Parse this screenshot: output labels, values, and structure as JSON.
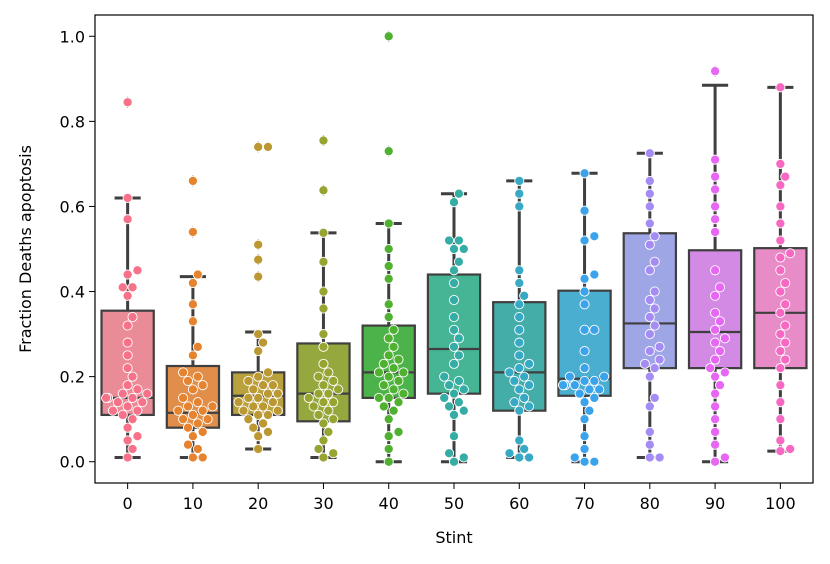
{
  "chart_data": {
    "type": "box",
    "xlabel": "Stint",
    "ylabel": "Fraction Deaths apoptosis",
    "ylim": [
      -0.05,
      1.05
    ],
    "yticks": [
      "0.0",
      "0.2",
      "0.4",
      "0.6",
      "0.8",
      "1.0"
    ],
    "yticks_values": [
      0.0,
      0.2,
      0.4,
      0.6,
      0.8,
      1.0
    ],
    "grid": false,
    "categories": [
      "0",
      "10",
      "20",
      "30",
      "40",
      "50",
      "60",
      "70",
      "80",
      "90",
      "100"
    ],
    "colors": [
      "#ea8c97",
      "#e08e4a",
      "#b9a23e",
      "#94a83d",
      "#4cb34a",
      "#45b596",
      "#45ada8",
      "#4aaed0",
      "#9fa6e6",
      "#d28ae4",
      "#e88cc8"
    ],
    "swarm_colors": [
      "#f77189",
      "#e6832f",
      "#bb9832",
      "#98a431",
      "#50b131",
      "#36ada4",
      "#38a9c5",
      "#3ba3ec",
      "#a48cf4",
      "#e866f4",
      "#f668c2"
    ],
    "boxes": [
      {
        "q1": 0.11,
        "median": 0.15,
        "q3": 0.355,
        "whislo": 0.01,
        "whishi": 0.62,
        "fliers": [
          0.845
        ]
      },
      {
        "q1": 0.08,
        "median": 0.115,
        "q3": 0.225,
        "whislo": 0.01,
        "whishi": 0.435,
        "fliers": [
          0.54,
          0.66
        ]
      },
      {
        "q1": 0.11,
        "median": 0.155,
        "q3": 0.21,
        "whislo": 0.03,
        "whishi": 0.305,
        "fliers": [
          0.435,
          0.475,
          0.51,
          0.74
        ]
      },
      {
        "q1": 0.095,
        "median": 0.16,
        "q3": 0.278,
        "whislo": 0.01,
        "whishi": 0.538,
        "fliers": [
          0.638,
          0.755
        ]
      },
      {
        "q1": 0.15,
        "median": 0.21,
        "q3": 0.32,
        "whislo": 0.0,
        "whishi": 0.56,
        "fliers": [
          0.73,
          1.0
        ]
      },
      {
        "q1": 0.16,
        "median": 0.265,
        "q3": 0.44,
        "whislo": 0.0,
        "whishi": 0.63,
        "fliers": []
      },
      {
        "q1": 0.12,
        "median": 0.21,
        "q3": 0.375,
        "whislo": 0.01,
        "whishi": 0.66,
        "fliers": []
      },
      {
        "q1": 0.155,
        "median": 0.195,
        "q3": 0.402,
        "whislo": 0.0,
        "whishi": 0.678,
        "fliers": []
      },
      {
        "q1": 0.22,
        "median": 0.325,
        "q3": 0.537,
        "whislo": 0.01,
        "whishi": 0.725,
        "fliers": []
      },
      {
        "q1": 0.22,
        "median": 0.305,
        "q3": 0.497,
        "whislo": 0.0,
        "whishi": 0.885,
        "fliers": [
          0.918
        ]
      },
      {
        "q1": 0.22,
        "median": 0.35,
        "q3": 0.502,
        "whislo": 0.025,
        "whishi": 0.88,
        "fliers": []
      }
    ],
    "points": [
      [
        0.845,
        0.62,
        0.57,
        0.45,
        0.44,
        0.41,
        0.41,
        0.39,
        0.34,
        0.32,
        0.28,
        0.25,
        0.22,
        0.2,
        0.18,
        0.17,
        0.16,
        0.16,
        0.15,
        0.15,
        0.15,
        0.14,
        0.14,
        0.13,
        0.12,
        0.12,
        0.11,
        0.1,
        0.08,
        0.06,
        0.05,
        0.03,
        0.01
      ],
      [
        0.66,
        0.54,
        0.44,
        0.42,
        0.37,
        0.33,
        0.27,
        0.25,
        0.21,
        0.2,
        0.19,
        0.18,
        0.17,
        0.15,
        0.14,
        0.13,
        0.13,
        0.12,
        0.12,
        0.11,
        0.1,
        0.1,
        0.09,
        0.08,
        0.07,
        0.06,
        0.04,
        0.03,
        0.01,
        0.01
      ],
      [
        0.74,
        0.74,
        0.51,
        0.475,
        0.435,
        0.3,
        0.28,
        0.26,
        0.21,
        0.2,
        0.19,
        0.18,
        0.18,
        0.17,
        0.16,
        0.16,
        0.15,
        0.15,
        0.14,
        0.14,
        0.13,
        0.13,
        0.12,
        0.12,
        0.11,
        0.11,
        0.1,
        0.09,
        0.08,
        0.07,
        0.06,
        0.03
      ],
      [
        0.755,
        0.638,
        0.538,
        0.47,
        0.4,
        0.36,
        0.3,
        0.27,
        0.23,
        0.21,
        0.2,
        0.19,
        0.18,
        0.17,
        0.16,
        0.16,
        0.15,
        0.14,
        0.14,
        0.13,
        0.12,
        0.11,
        0.1,
        0.09,
        0.07,
        0.05,
        0.03,
        0.02,
        0.01
      ],
      [
        1.0,
        0.73,
        0.56,
        0.5,
        0.46,
        0.43,
        0.37,
        0.34,
        0.31,
        0.29,
        0.27,
        0.25,
        0.24,
        0.23,
        0.22,
        0.21,
        0.21,
        0.2,
        0.19,
        0.18,
        0.17,
        0.16,
        0.15,
        0.15,
        0.14,
        0.13,
        0.12,
        0.1,
        0.07,
        0.06,
        0.03,
        0.0
      ],
      [
        0.63,
        0.61,
        0.52,
        0.52,
        0.5,
        0.5,
        0.47,
        0.45,
        0.42,
        0.38,
        0.34,
        0.31,
        0.29,
        0.27,
        0.25,
        0.23,
        0.2,
        0.19,
        0.18,
        0.17,
        0.16,
        0.15,
        0.14,
        0.13,
        0.12,
        0.11,
        0.06,
        0.02,
        0.01,
        0.0
      ],
      [
        0.66,
        0.63,
        0.6,
        0.45,
        0.42,
        0.39,
        0.37,
        0.34,
        0.31,
        0.28,
        0.25,
        0.23,
        0.22,
        0.21,
        0.2,
        0.19,
        0.18,
        0.17,
        0.15,
        0.14,
        0.13,
        0.12,
        0.05,
        0.03,
        0.02,
        0.01,
        0.01
      ],
      [
        0.678,
        0.59,
        0.53,
        0.52,
        0.44,
        0.43,
        0.4,
        0.37,
        0.31,
        0.31,
        0.26,
        0.22,
        0.2,
        0.2,
        0.19,
        0.19,
        0.18,
        0.18,
        0.18,
        0.17,
        0.17,
        0.16,
        0.15,
        0.14,
        0.12,
        0.1,
        0.06,
        0.03,
        0.01,
        0.0,
        0.0
      ],
      [
        0.725,
        0.66,
        0.63,
        0.6,
        0.56,
        0.53,
        0.51,
        0.47,
        0.45,
        0.4,
        0.38,
        0.36,
        0.34,
        0.32,
        0.3,
        0.27,
        0.26,
        0.24,
        0.23,
        0.22,
        0.2,
        0.15,
        0.13,
        0.07,
        0.04,
        0.01,
        0.01
      ],
      [
        0.918,
        0.71,
        0.67,
        0.64,
        0.6,
        0.57,
        0.54,
        0.45,
        0.41,
        0.39,
        0.35,
        0.33,
        0.31,
        0.29,
        0.28,
        0.26,
        0.24,
        0.22,
        0.21,
        0.2,
        0.18,
        0.16,
        0.13,
        0.1,
        0.07,
        0.04,
        0.01,
        0.0
      ],
      [
        0.88,
        0.7,
        0.67,
        0.65,
        0.6,
        0.56,
        0.52,
        0.49,
        0.48,
        0.45,
        0.42,
        0.4,
        0.37,
        0.35,
        0.32,
        0.3,
        0.28,
        0.26,
        0.24,
        0.22,
        0.18,
        0.14,
        0.1,
        0.05,
        0.03,
        0.025
      ]
    ]
  }
}
